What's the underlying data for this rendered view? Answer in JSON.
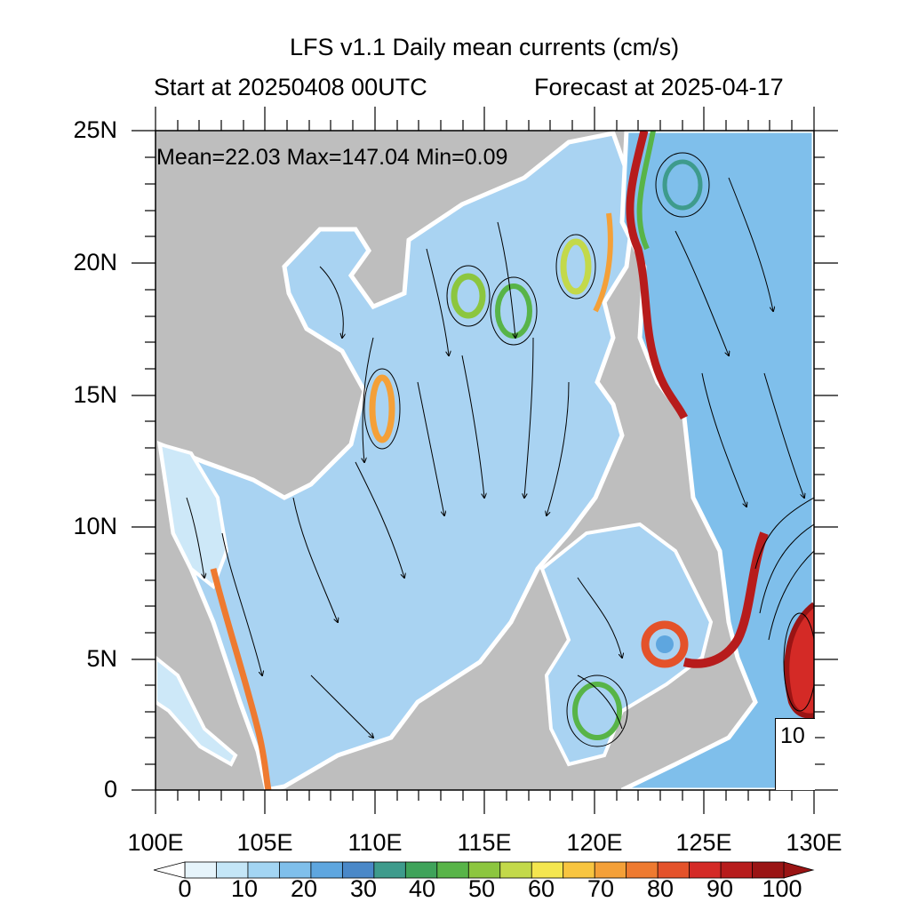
{
  "title": "LFS v1.1 Daily mean currents (cm/s)",
  "subtitle_left": "Start at 20250408 00UTC",
  "subtitle_right": "Forecast at 2025-04-17",
  "stats": "Mean=22.03  Max=147.04  Min=0.09",
  "lat_labels": [
    "25N",
    "20N",
    "15N",
    "10N",
    "5N",
    "0"
  ],
  "lon_labels": [
    "100E",
    "105E",
    "110E",
    "115E",
    "120E",
    "125E",
    "130E"
  ],
  "reference_vector": "10",
  "colorbar": {
    "labels": [
      "0",
      "10",
      "20",
      "30",
      "40",
      "50",
      "60",
      "70",
      "80",
      "90",
      "100"
    ],
    "colors": [
      "#e6f4fb",
      "#c4e6f7",
      "#a3d5f3",
      "#7fbfeb",
      "#5ea6df",
      "#4a88c8",
      "#3e9b8c",
      "#3fa35a",
      "#58b448",
      "#8cc63f",
      "#c3d94a",
      "#f4e64f",
      "#f8c540",
      "#f4a038",
      "#ee7a30",
      "#e4522a",
      "#d42a26",
      "#b71c1c",
      "#9a1414"
    ]
  },
  "map_colors": {
    "land": "#bebebe",
    "ocean_base": "#a9d3f2",
    "coast_gap": "#ffffff"
  }
}
